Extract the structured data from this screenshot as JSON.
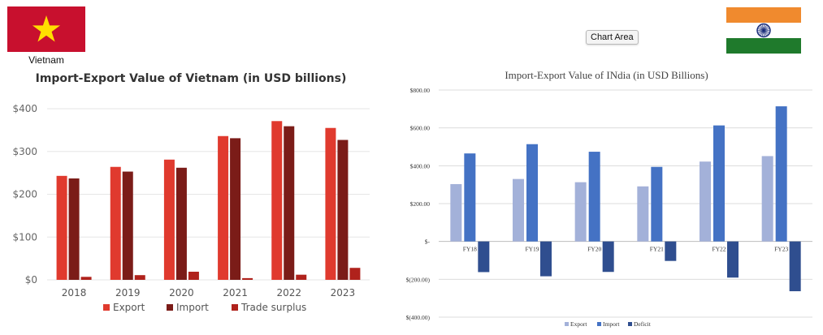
{
  "vietnam": {
    "flag_label": "Vietnam",
    "flag_colors": {
      "field": "#c8102e",
      "star": "#ffde00"
    },
    "chart_title": "Import-Export Value of Vietnam (in USD billions)"
  },
  "india": {
    "chart_title": "Import-Export Value of INdia (in USD Billions)",
    "tooltip": "Chart Area",
    "flag_colors": {
      "saffron": "#f08a2e",
      "white": "#ffffff",
      "green": "#1f7a2c",
      "chakra": "#1a2d7a"
    }
  },
  "chart_data": [
    {
      "type": "bar",
      "title": "Import-Export Value of Vietnam (in USD billions)",
      "categories": [
        "2018",
        "2019",
        "2020",
        "2021",
        "2022",
        "2023"
      ],
      "series": [
        {
          "name": "Export",
          "color": "#e03a2e",
          "values": [
            243,
            264,
            281,
            336,
            371,
            355
          ]
        },
        {
          "name": "Import",
          "color": "#7b1c18",
          "values": [
            237,
            253,
            262,
            331,
            359,
            327
          ]
        },
        {
          "name": "Trade surplus",
          "color": "#b0221c",
          "values": [
            7,
            11,
            19,
            4,
            12,
            28
          ]
        }
      ],
      "yticks": [
        "$0",
        "$100",
        "$200",
        "$300",
        "$400"
      ],
      "ytick_values": [
        0,
        100,
        200,
        300,
        400
      ],
      "ylim": [
        0,
        400
      ],
      "legend": [
        "Export",
        "Import",
        "Trade surplus"
      ],
      "legend_position": "bottom",
      "grid": true
    },
    {
      "type": "bar",
      "title": "Import-Export Value of INdia (in USD Billions)",
      "categories": [
        "FY18",
        "FY19",
        "FY20",
        "FY21",
        "FY22",
        "FY23"
      ],
      "series": [
        {
          "name": "Export",
          "color": "#a3b1d9",
          "values": [
            303,
            330,
            313,
            291,
            422,
            451
          ]
        },
        {
          "name": "Import",
          "color": "#4472c4",
          "values": [
            465,
            514,
            474,
            394,
            613,
            714
          ]
        },
        {
          "name": "Deficit",
          "color": "#2f4e8f",
          "values": [
            -162,
            -184,
            -161,
            -103,
            -191,
            -263
          ]
        }
      ],
      "yticks": [
        "$(400.00)",
        "$(200.00)",
        "$-",
        "$200.00",
        "$400.00",
        "$600.00",
        "$800.00"
      ],
      "ytick_values": [
        -400,
        -200,
        0,
        200,
        400,
        600,
        800
      ],
      "ylim": [
        -400,
        800
      ],
      "legend": [
        "Export",
        "Import",
        "Deficit"
      ],
      "legend_position": "bottom",
      "grid": true
    }
  ]
}
